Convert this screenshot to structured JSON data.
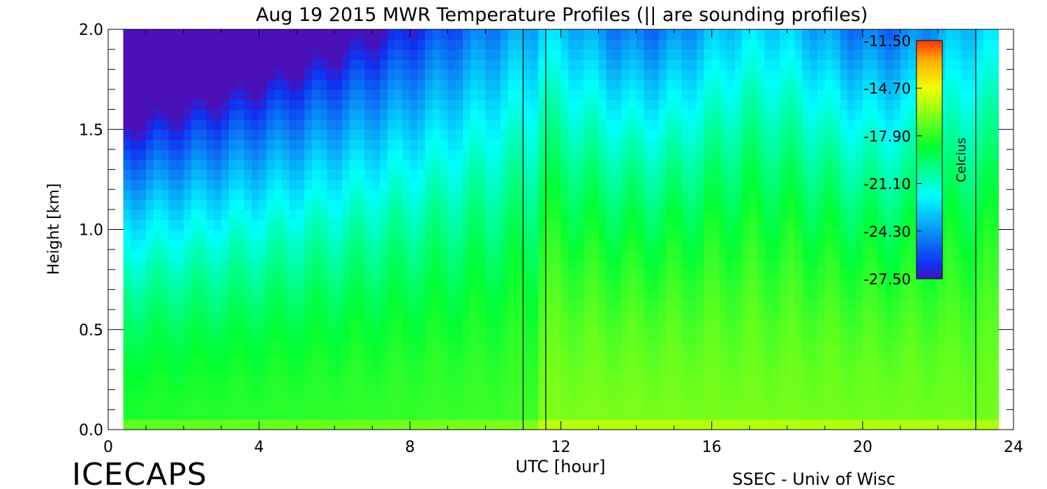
{
  "chart_data": {
    "type": "heatmap",
    "title": "Aug 19 2015 MWR Temperature Profiles (|| are sounding profiles)",
    "xlabel": "UTC [hour]",
    "ylabel": "Height [km]",
    "xlim": [
      0,
      24
    ],
    "ylim": [
      0,
      2.0
    ],
    "x_ticks": [
      0,
      4,
      8,
      12,
      16,
      20,
      24
    ],
    "y_ticks": [
      0.0,
      0.5,
      1.0,
      1.5,
      2.0
    ],
    "x_tick_labels": [
      "0",
      "4",
      "8",
      "12",
      "16",
      "20",
      "24"
    ],
    "y_tick_labels": [
      "0.0",
      "0.5",
      "1.0",
      "1.5",
      "2.0"
    ],
    "data_start_hour": 0.4,
    "data_end_hour": 23.6,
    "sounding_hours": [
      11.0,
      11.6,
      23.0
    ],
    "colorbar": {
      "label": "Celcius",
      "min": -27.5,
      "max": -11.5,
      "ticks": [
        -11.5,
        -14.7,
        -17.9,
        -21.1,
        -24.3,
        -27.5
      ],
      "tick_labels": [
        "-11.50",
        "-14.70",
        "-17.90",
        "-21.10",
        "-24.30",
        "-27.50"
      ]
    },
    "colors": {
      "coldest": "#3a0fb0",
      "cold": "#0a2ee6",
      "cool": "#00ffff",
      "mid": "#00ff22",
      "warm": "#f4ff00",
      "hottest": "#ff4400"
    }
  },
  "footer": {
    "left": "ICECAPS",
    "right": "SSEC - Univ of Wisc"
  }
}
